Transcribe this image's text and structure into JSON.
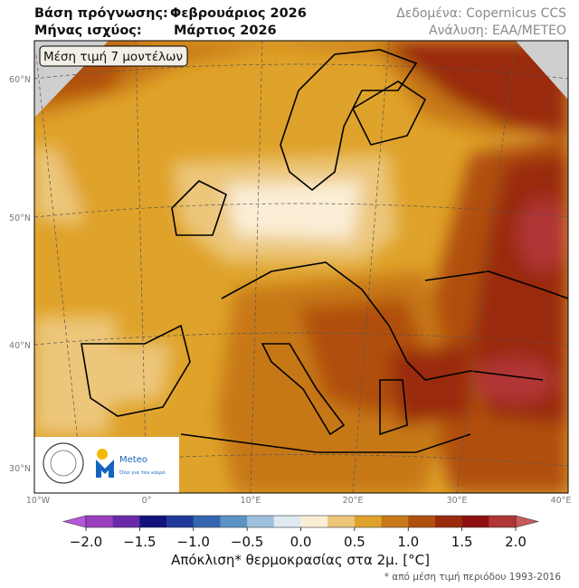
{
  "header": {
    "forecast_label": "Βάση πρόγνωσης:",
    "forecast_value": "Φεβρουάριος 2026",
    "valid_label": "Μήνας ισχύος:",
    "valid_value": "Μάρτιος 2026",
    "data_source": "Δεδομένα: Copernicus CCS",
    "analysis": "Ανάλυση: ΕΑΑ/METEO"
  },
  "map": {
    "badge": "Μέση τιμή 7 μοντέλων",
    "lat_labels": [
      "60°N",
      "50°N",
      "40°N",
      "30°N"
    ],
    "lon_labels": [
      "10°W",
      "0°",
      "10°E",
      "20°E",
      "30°E",
      "40°E"
    ],
    "logo_text": "Meteo",
    "logo_slogan": "Όλα για τον καιρό"
  },
  "colorbar": {
    "label": "Απόκλιση* θερμοκρασίας στα 2μ. [°C]",
    "footnote": "* από μέση τιμή περιόδου 1993-2016",
    "range": [
      -2,
      2
    ],
    "bounds": [
      -2,
      -1.75,
      -1.5,
      -1.25,
      -1,
      -0.75,
      -0.5,
      -0.25,
      0,
      0.25,
      0.5,
      0.75,
      1,
      1.25,
      1.5,
      1.75,
      2
    ],
    "colors": [
      "#9b3fbf",
      "#6a2aa8",
      "#12127a",
      "#1f3a9a",
      "#3466b0",
      "#5a93c4",
      "#9ec0dc",
      "#dfe9f2",
      "#fbeed6",
      "#ecc67a",
      "#dfa22a",
      "#c77818",
      "#b0500f",
      "#9a2a0c",
      "#8e1010",
      "#b03535"
    ],
    "extend_colors": [
      "#b657d9",
      "#c85a5a"
    ],
    "ticks": [
      {
        "value": -2,
        "label": "−2.0"
      },
      {
        "value": -1.5,
        "label": "−1.5"
      },
      {
        "value": -1,
        "label": "−1.0"
      },
      {
        "value": -0.5,
        "label": "−0.5"
      },
      {
        "value": 0,
        "label": "0.0"
      },
      {
        "value": 0.5,
        "label": "0.5"
      },
      {
        "value": 1,
        "label": "1.0"
      },
      {
        "value": 1.5,
        "label": "1.5"
      },
      {
        "value": 2,
        "label": "2.0"
      }
    ]
  }
}
